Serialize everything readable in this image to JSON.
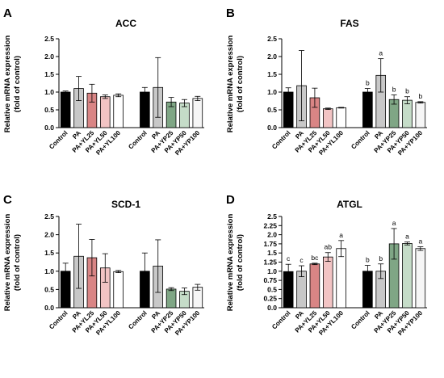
{
  "chart_data": [
    {
      "type": "bar",
      "panel": "A",
      "title": "ACC",
      "ylabel": [
        "Relative mRNA expression",
        "(fold of control)"
      ],
      "ylim": [
        0,
        2.5
      ],
      "yticks": [
        "0.0",
        "0.5",
        "1.0",
        "1.5",
        "2.0",
        "2.5"
      ],
      "categories": [
        "Control",
        "PA",
        "PA+YL25",
        "PA+YL50",
        "PA+YL100",
        "Control",
        "PA",
        "PA+YP25",
        "PA+YP50",
        "PA+YP100"
      ],
      "values": [
        1.0,
        1.1,
        0.97,
        0.87,
        0.91,
        1.0,
        1.13,
        0.72,
        0.69,
        0.82
      ],
      "errors": [
        0.03,
        0.34,
        0.25,
        0.05,
        0.04,
        0.13,
        0.84,
        0.13,
        0.1,
        0.06
      ],
      "significance": [
        "",
        "",
        "",
        "",
        "",
        "",
        "",
        "",
        "",
        ""
      ],
      "colors": [
        "#000000",
        "#c8c8c8",
        "#d98585",
        "#f2c4c4",
        "#ffffff",
        "#000000",
        "#c8c8c8",
        "#7fa685",
        "#c5dcc8",
        "#f6f6f6"
      ]
    },
    {
      "type": "bar",
      "panel": "B",
      "title": "FAS",
      "ylabel": [
        "Relative mRNA expression",
        "(fold of control)"
      ],
      "ylim": [
        0,
        2.5
      ],
      "yticks": [
        "0.0",
        "0.5",
        "1.0",
        "1.5",
        "2.0",
        "2.5"
      ],
      "categories": [
        "Control",
        "PA",
        "PA+YL25",
        "PA+YL50",
        "PA+YL100",
        "Control",
        "PA",
        "PA+YP25",
        "PA+YP50",
        "PA+YP100"
      ],
      "values": [
        1.0,
        1.18,
        0.84,
        0.53,
        0.56,
        1.0,
        1.47,
        0.79,
        0.77,
        0.71
      ],
      "errors": [
        0.12,
        0.99,
        0.27,
        0.02,
        0.01,
        0.1,
        0.47,
        0.13,
        0.1,
        0.02
      ],
      "significance": [
        "",
        "",
        "",
        "",
        "",
        "b",
        "a",
        "b",
        "b",
        "b"
      ],
      "colors": [
        "#000000",
        "#c8c8c8",
        "#d98585",
        "#f2c4c4",
        "#ffffff",
        "#000000",
        "#c8c8c8",
        "#7fa685",
        "#c5dcc8",
        "#f6f6f6"
      ]
    },
    {
      "type": "bar",
      "panel": "C",
      "title": "SCD-1",
      "ylabel": [
        "Relative mRNA expression",
        "(fold of control)"
      ],
      "ylim": [
        0,
        2.5
      ],
      "yticks": [
        "0.0",
        "0.5",
        "1.0",
        "1.5",
        "2.0",
        "2.5"
      ],
      "categories": [
        "Control",
        "PA",
        "PA+YL25",
        "PA+YL50",
        "PA+YL100",
        "Control",
        "PA",
        "PA+YP25",
        "PA+YP50",
        "PA+YP100"
      ],
      "values": [
        1.0,
        1.41,
        1.37,
        1.09,
        0.99,
        1.0,
        1.14,
        0.51,
        0.45,
        0.56
      ],
      "errors": [
        0.22,
        0.88,
        0.5,
        0.39,
        0.03,
        0.5,
        0.72,
        0.04,
        0.09,
        0.08
      ],
      "significance": [
        "",
        "",
        "",
        "",
        "",
        "",
        "",
        "",
        "",
        ""
      ],
      "colors": [
        "#000000",
        "#c8c8c8",
        "#d98585",
        "#f2c4c4",
        "#ffffff",
        "#000000",
        "#c8c8c8",
        "#7fa685",
        "#c5dcc8",
        "#f6f6f6"
      ]
    },
    {
      "type": "bar",
      "panel": "D",
      "title": "ATGL",
      "ylabel": [
        "Relative mRNA expression",
        "(fold of control)"
      ],
      "ylim": [
        0,
        2.5
      ],
      "yticks": [
        "0.0",
        "0.25",
        "0.5",
        "0.75",
        "1.0",
        "1.25",
        "1.5",
        "1.75",
        "2.0",
        "2.25",
        "2.5"
      ],
      "categories": [
        "Control",
        "PA",
        "PA+YL25",
        "PA+YL50",
        "PA+YL100",
        "Control",
        "PA",
        "PA+YP25",
        "PA+YP50",
        "PA+YP100"
      ],
      "values": [
        0.99,
        1.0,
        1.2,
        1.39,
        1.62,
        1.0,
        1.0,
        1.75,
        1.76,
        1.62
      ],
      "errors": [
        0.2,
        0.15,
        0.02,
        0.12,
        0.22,
        0.16,
        0.2,
        0.42,
        0.04,
        0.05
      ],
      "significance": [
        "c",
        "c",
        "bc",
        "ab",
        "a",
        "b",
        "b",
        "a",
        "a",
        "a"
      ],
      "colors": [
        "#000000",
        "#c8c8c8",
        "#d98585",
        "#f2c4c4",
        "#ffffff",
        "#000000",
        "#c8c8c8",
        "#7fa685",
        "#c5dcc8",
        "#f6f6f6"
      ]
    }
  ]
}
